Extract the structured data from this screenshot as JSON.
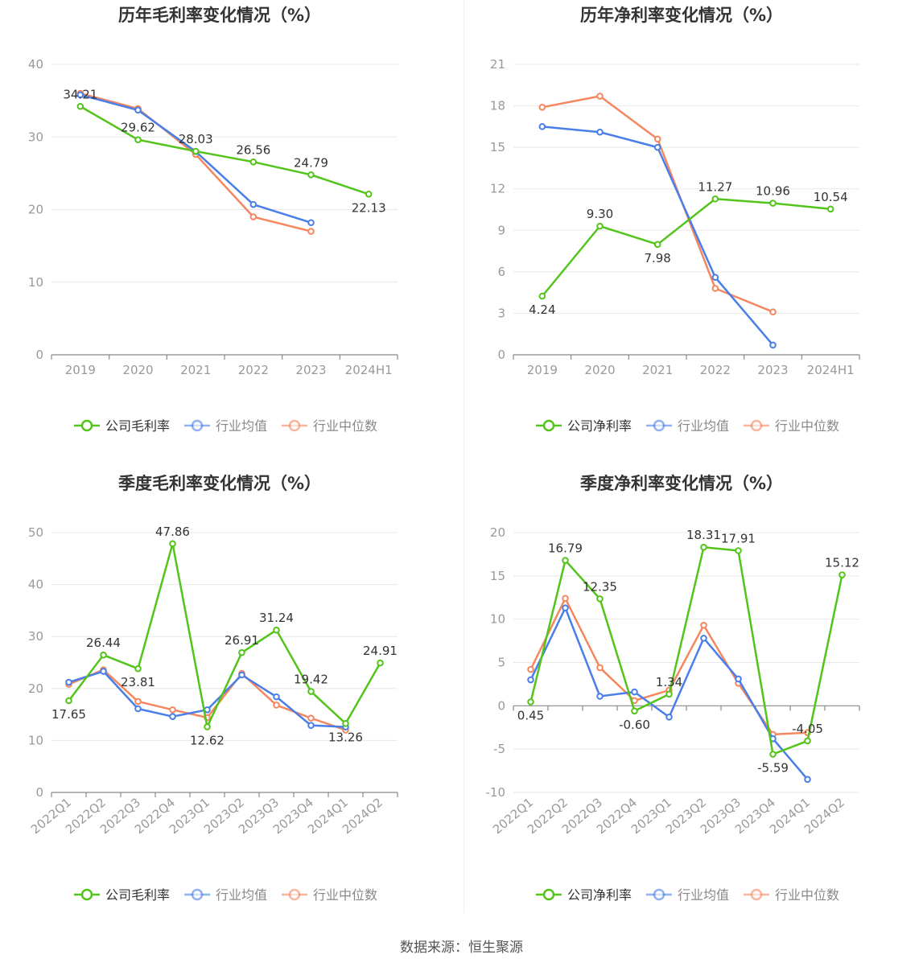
{
  "legend_labels": {
    "series_0_gross": "公司毛利率",
    "series_0_net": "公司净利率",
    "series_1": "行业均值",
    "series_2": "行业中位数"
  },
  "colors": {
    "company": "#52c41a",
    "avg": "#4a7ee8",
    "median": "#f4875f",
    "grid": "#e8e8e8",
    "axis": "#999999",
    "text": "#333333"
  },
  "source": "数据来源：恒生聚源",
  "chart_data": [
    {
      "type": "line",
      "title": "历年毛利率变化情况（%）",
      "categories": [
        "2019",
        "2020",
        "2021",
        "2022",
        "2023",
        "2024H1"
      ],
      "yticks": [
        0,
        10,
        20,
        30,
        40
      ],
      "ylim": [
        0,
        40
      ],
      "rotate_x": false,
      "series": [
        {
          "name": "公司毛利率",
          "color": "#52c41a",
          "labeled": true,
          "labels": [
            "34.21",
            "29.62",
            "28.03",
            "26.56",
            "24.79",
            "22.13"
          ],
          "values": [
            34.21,
            29.62,
            28.03,
            26.56,
            24.79,
            22.13
          ]
        },
        {
          "name": "行业均值",
          "color": "#4a7ee8",
          "labeled": false,
          "values": [
            35.8,
            33.7,
            28.0,
            20.7,
            18.2,
            null
          ]
        },
        {
          "name": "行业中位数",
          "color": "#f4875f",
          "labeled": false,
          "values": [
            36.0,
            33.9,
            27.6,
            19.0,
            17.0,
            null
          ]
        }
      ]
    },
    {
      "type": "line",
      "title": "历年净利率变化情况（%）",
      "categories": [
        "2019",
        "2020",
        "2021",
        "2022",
        "2023",
        "2024H1"
      ],
      "yticks": [
        0,
        3,
        6,
        9,
        12,
        15,
        18,
        21
      ],
      "ylim": [
        0,
        21
      ],
      "rotate_x": false,
      "series": [
        {
          "name": "公司净利率",
          "color": "#52c41a",
          "labeled": true,
          "labels": [
            "4.24",
            "9.30",
            "7.98",
            "11.27",
            "10.96",
            "10.54"
          ],
          "values": [
            4.24,
            9.3,
            7.98,
            11.27,
            10.96,
            10.54
          ]
        },
        {
          "name": "行业均值",
          "color": "#4a7ee8",
          "labeled": false,
          "values": [
            16.5,
            16.1,
            15.0,
            5.6,
            0.7,
            null
          ]
        },
        {
          "name": "行业中位数",
          "color": "#f4875f",
          "labeled": false,
          "values": [
            17.9,
            18.7,
            15.6,
            4.8,
            3.1,
            null
          ]
        }
      ]
    },
    {
      "type": "line",
      "title": "季度毛利率变化情况（%）",
      "categories": [
        "2022Q1",
        "2022Q2",
        "2022Q3",
        "2022Q4",
        "2023Q1",
        "2023Q2",
        "2023Q3",
        "2023Q4",
        "2024Q1",
        "2024Q2"
      ],
      "yticks": [
        0,
        10,
        20,
        30,
        40,
        50
      ],
      "ylim": [
        0,
        50
      ],
      "rotate_x": true,
      "series": [
        {
          "name": "公司毛利率",
          "color": "#52c41a",
          "labeled": true,
          "labels": [
            "17.65",
            "26.44",
            "23.81",
            "47.86",
            "12.62",
            "26.91",
            "31.24",
            "19.42",
            "13.26",
            "24.91"
          ],
          "values": [
            17.65,
            26.44,
            23.81,
            47.86,
            12.62,
            26.91,
            31.24,
            19.42,
            13.26,
            24.91
          ]
        },
        {
          "name": "行业均值",
          "color": "#4a7ee8",
          "labeled": false,
          "values": [
            21.2,
            23.3,
            16.1,
            14.6,
            15.9,
            22.6,
            18.4,
            12.9,
            12.6,
            null
          ]
        },
        {
          "name": "行业中位数",
          "color": "#f4875f",
          "labeled": false,
          "values": [
            20.8,
            23.6,
            17.5,
            15.9,
            14.4,
            22.9,
            16.8,
            14.3,
            12.0,
            null
          ]
        }
      ]
    },
    {
      "type": "line",
      "title": "季度净利率变化情况（%）",
      "categories": [
        "2022Q1",
        "2022Q2",
        "2022Q3",
        "2022Q4",
        "2023Q1",
        "2023Q2",
        "2023Q3",
        "2023Q4",
        "2024Q1",
        "2024Q2"
      ],
      "yticks": [
        -10,
        -5,
        0,
        5,
        10,
        15,
        20
      ],
      "ylim": [
        -10,
        20
      ],
      "rotate_x": true,
      "series": [
        {
          "name": "公司净利率",
          "color": "#52c41a",
          "labeled": true,
          "labels": [
            "0.45",
            "16.79",
            "12.35",
            "-0.60",
            "1.34",
            "18.31",
            "17.91",
            "-5.59",
            "-4.05",
            "15.12"
          ],
          "values": [
            0.45,
            16.79,
            12.35,
            -0.6,
            1.34,
            18.31,
            17.91,
            -5.59,
            -4.05,
            15.12
          ]
        },
        {
          "name": "行业均值",
          "color": "#4a7ee8",
          "labeled": false,
          "values": [
            3.0,
            11.3,
            1.1,
            1.6,
            -1.3,
            7.8,
            3.1,
            -3.8,
            -8.5,
            null
          ]
        },
        {
          "name": "行业中位数",
          "color": "#f4875f",
          "labeled": false,
          "values": [
            4.2,
            12.4,
            4.4,
            0.6,
            1.8,
            9.3,
            2.6,
            -3.3,
            -3.1,
            null
          ]
        }
      ]
    }
  ]
}
